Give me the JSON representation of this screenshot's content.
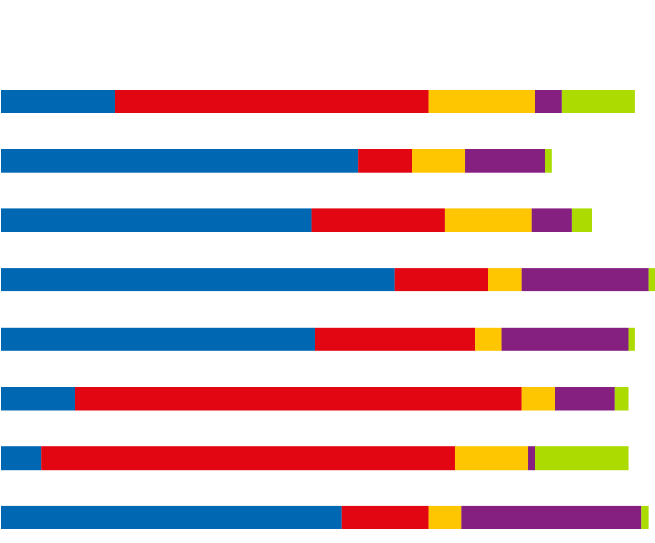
{
  "chart_data": {
    "type": "bar",
    "orientation": "horizontal",
    "stacked": true,
    "title": "",
    "xlabel": "",
    "ylabel": "",
    "grid": false,
    "legend": "none",
    "xlim": [
      0,
      98
    ],
    "colors": [
      "#0068b3",
      "#e20613",
      "#fec600",
      "#852081",
      "#abdb00"
    ],
    "series": [
      {
        "values": [
          17,
          53.5,
          46.5,
          59,
          47,
          11,
          6,
          51
        ]
      },
      {
        "values": [
          47,
          8,
          20,
          14,
          24,
          67,
          62,
          13
        ]
      },
      {
        "values": [
          16,
          8,
          13,
          5,
          4,
          5,
          11,
          5
        ]
      },
      {
        "values": [
          4,
          12,
          6,
          19,
          19,
          9,
          1,
          27
        ]
      },
      {
        "values": [
          11,
          1,
          3,
          1,
          1,
          2,
          14,
          1
        ]
      }
    ]
  }
}
